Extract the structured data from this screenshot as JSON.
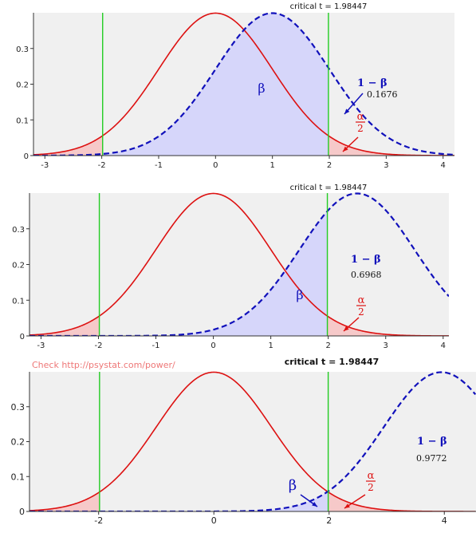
{
  "watermark": "Check http://psystat.com/power/",
  "chart_data": [
    {
      "type": "area",
      "title": "critical t = 1.98447",
      "critical_t": 1.98447,
      "xlim": [
        -3.2,
        4.2
      ],
      "ylim": [
        0,
        0.4
      ],
      "x_ticks": [
        -3,
        -2,
        -1,
        0,
        1,
        2,
        3,
        4
      ],
      "y_ticks": [
        0,
        0.1,
        0.2,
        0.3
      ],
      "x_tick_labels": [
        "-3",
        "-2",
        "-1",
        "0",
        "1",
        "2",
        "3",
        "4"
      ],
      "y_tick_labels": [
        "0",
        "0.1",
        "0.2",
        "0.3"
      ],
      "null_mean": 0,
      "alt_mean": 1.0,
      "power_label": "1 − β",
      "power_value": "0.1676",
      "beta_label": "β",
      "alpha_label": "α",
      "alpha_denominator": "2",
      "colors": {
        "null": "#dd1111",
        "alt": "#1111bb",
        "beta_fill": "#d6d6fa",
        "alpha_fill": "#f6c9c9",
        "crit": "#22cc22",
        "plot_bg": "#f0f0f0"
      }
    },
    {
      "type": "area",
      "title": "critical t = 1.98447",
      "critical_t": 1.98447,
      "xlim": [
        -3.2,
        4.1
      ],
      "ylim": [
        0,
        0.4
      ],
      "x_ticks": [
        -3,
        -2,
        -1,
        0,
        1,
        2,
        3,
        4
      ],
      "y_ticks": [
        0,
        0.1,
        0.2,
        0.3
      ],
      "x_tick_labels": [
        "-3",
        "-2",
        "-1",
        "0",
        "1",
        "2",
        "3",
        "4"
      ],
      "y_tick_labels": [
        "0",
        "0.1",
        "0.2",
        "0.3"
      ],
      "null_mean": 0,
      "alt_mean": 2.5,
      "power_label": "1 − β",
      "power_value": "0.6968",
      "beta_label": "β",
      "alpha_label": "α",
      "alpha_denominator": "2",
      "colors": {
        "null": "#dd1111",
        "alt": "#1111bb",
        "beta_fill": "#d6d6fa",
        "alpha_fill": "#f6c9c9",
        "crit": "#22cc22",
        "plot_bg": "#f0f0f0"
      }
    },
    {
      "type": "area",
      "title": "critical t = 1.98447",
      "critical_t": 1.98447,
      "xlim": [
        -3.2,
        4.55
      ],
      "ylim": [
        0,
        0.4
      ],
      "x_ticks": [
        -2,
        0,
        2,
        4
      ],
      "y_ticks": [
        0,
        0.1,
        0.2,
        0.3
      ],
      "x_tick_labels": [
        "-2",
        "0",
        "2",
        "4"
      ],
      "y_tick_labels": [
        "0",
        "0.1",
        "0.2",
        "0.3"
      ],
      "null_mean": 0,
      "alt_mean": 3.95,
      "power_label": "1 − β",
      "power_value": "0.9772",
      "beta_label": "β",
      "alpha_label": "α",
      "alpha_denominator": "2",
      "colors": {
        "null": "#dd1111",
        "alt": "#1111bb",
        "beta_fill": "#d6d6fa",
        "alpha_fill": "#f6c9c9",
        "crit": "#22cc22",
        "plot_bg": "#f0f0f0"
      }
    }
  ]
}
